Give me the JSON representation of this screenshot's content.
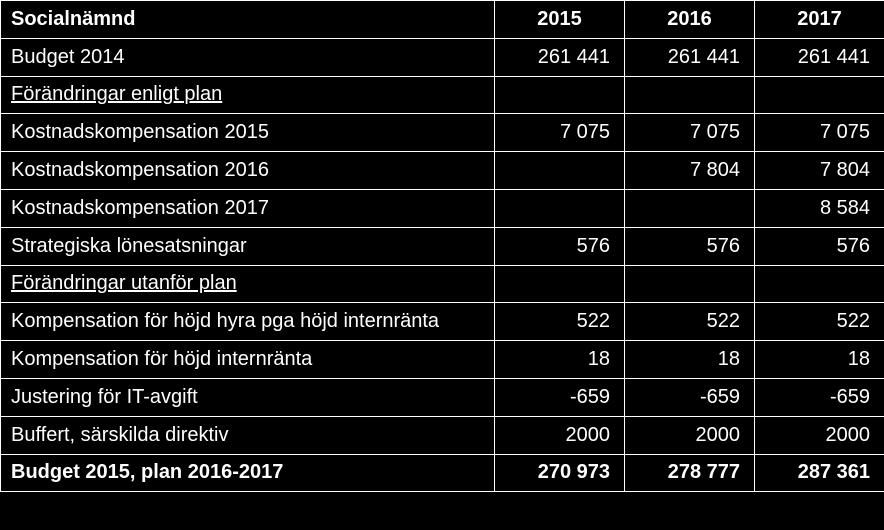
{
  "table": {
    "title": "Socialnämnd",
    "years": [
      "2015",
      "2016",
      "2017"
    ],
    "rows": [
      {
        "label": "Budget 2014",
        "values": [
          "261 441",
          "261 441",
          "261 441"
        ],
        "bold": false,
        "section": false
      },
      {
        "label": "Förändringar enligt plan",
        "values": [
          "",
          "",
          ""
        ],
        "bold": false,
        "section": true
      },
      {
        "label": "Kostnadskompensation 2015",
        "values": [
          "7 075",
          "7 075",
          "7 075"
        ],
        "bold": false,
        "section": false
      },
      {
        "label": "Kostnadskompensation 2016",
        "values": [
          "",
          "7 804",
          "7 804"
        ],
        "bold": false,
        "section": false
      },
      {
        "label": "Kostnadskompensation 2017",
        "values": [
          "",
          "",
          "8 584"
        ],
        "bold": false,
        "section": false
      },
      {
        "label": "Strategiska lönesatsningar",
        "values": [
          "576",
          "576",
          "576"
        ],
        "bold": false,
        "section": false
      },
      {
        "label": "Förändringar utanför plan",
        "values": [
          "",
          "",
          ""
        ],
        "bold": false,
        "section": true
      },
      {
        "label": "Kompensation för höjd hyra pga höjd internränta",
        "values": [
          "522",
          "522",
          "522"
        ],
        "bold": false,
        "section": false
      },
      {
        "label": "Kompensation för höjd internränta",
        "values": [
          "18",
          "18",
          "18"
        ],
        "bold": false,
        "section": false
      },
      {
        "label": "Justering för IT-avgift",
        "values": [
          "-659",
          "-659",
          "-659"
        ],
        "bold": false,
        "section": false
      },
      {
        "label": "Buffert, särskilda direktiv",
        "values": [
          "2000",
          "2000",
          "2000"
        ],
        "bold": false,
        "section": false
      },
      {
        "label": "Budget 2015, plan 2016-2017",
        "values": [
          "270 973",
          "278 777",
          "287 361"
        ],
        "bold": true,
        "section": false
      }
    ],
    "styling": {
      "background": "#000000",
      "text_color": "#ffffff",
      "border_color": "#ffffff",
      "font_family": "Arial",
      "header_fontsize": 20,
      "cell_fontsize": 20,
      "label_col_width": 494,
      "num_col_width": 130
    }
  }
}
